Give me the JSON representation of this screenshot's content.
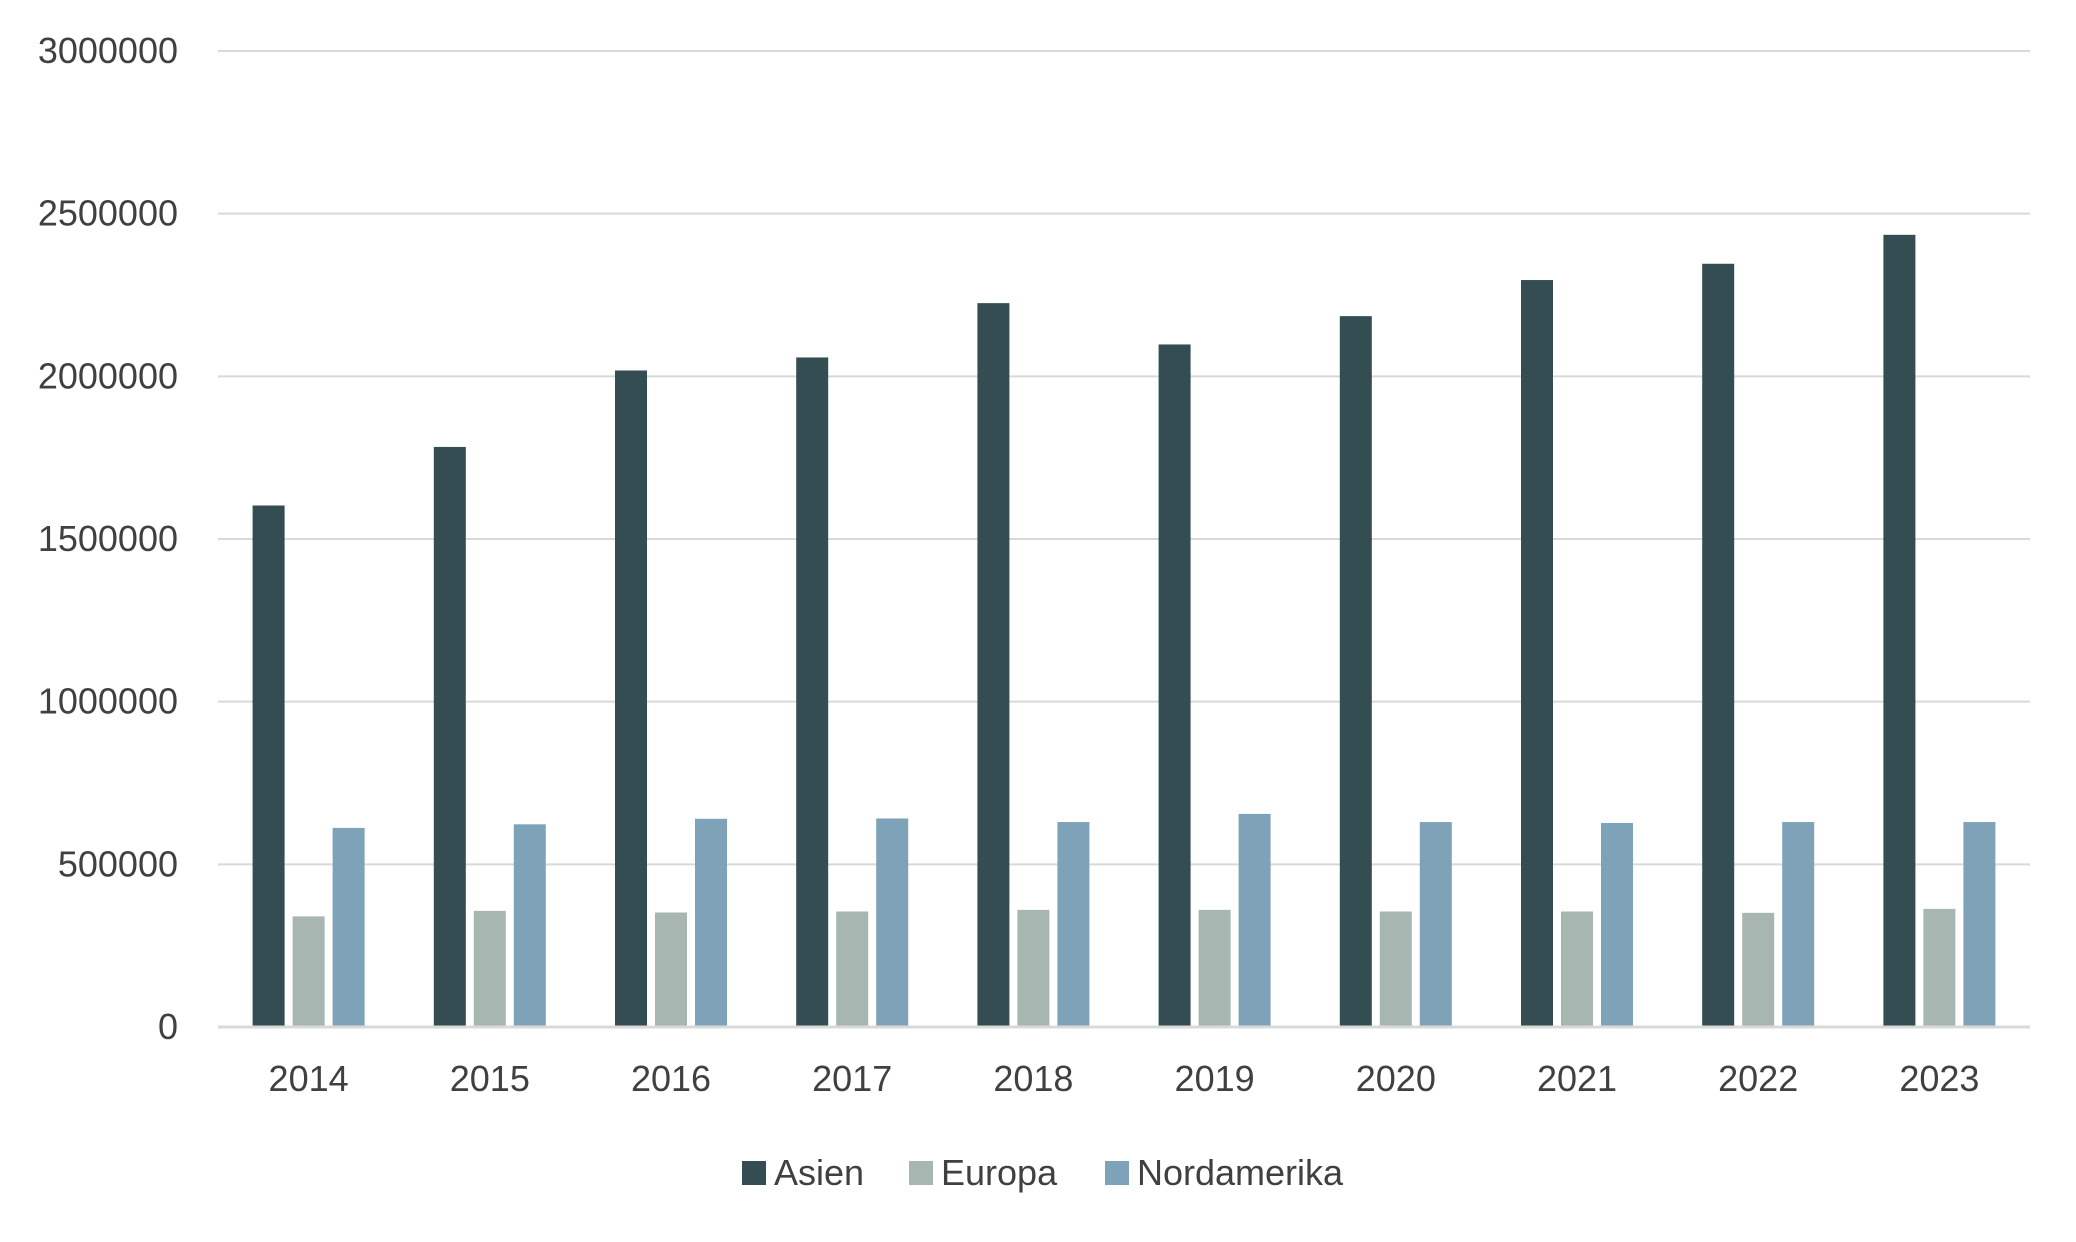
{
  "chart_data": {
    "type": "bar",
    "title": "",
    "xlabel": "",
    "ylabel": "",
    "categories": [
      "2014",
      "2015",
      "2016",
      "2017",
      "2018",
      "2019",
      "2020",
      "2021",
      "2022",
      "2023"
    ],
    "series": [
      {
        "name": "Asien",
        "color": "#344d52",
        "values": [
          1603000,
          1783000,
          2018000,
          2058000,
          2225000,
          2098000,
          2185000,
          2296000,
          2346000,
          2435000
        ]
      },
      {
        "name": "Europa",
        "color": "#a7b6b0",
        "values": [
          340000,
          357000,
          352000,
          355000,
          360000,
          360000,
          355000,
          355000,
          351000,
          363000
        ]
      },
      {
        "name": "Nordamerika",
        "color": "#7ea2b8",
        "values": [
          612000,
          623000,
          640000,
          641000,
          630000,
          655000,
          630000,
          627000,
          630000,
          630000
        ]
      }
    ],
    "ylim": [
      0,
      3000000
    ],
    "yticks": [
      0,
      500000,
      1000000,
      1500000,
      2000000,
      2500000,
      3000000
    ],
    "ytick_labels": [
      "0",
      "500000",
      "1000000",
      "1500000",
      "2000000",
      "2500000",
      "3000000"
    ],
    "grid": true,
    "legend_position": "bottom-center"
  }
}
